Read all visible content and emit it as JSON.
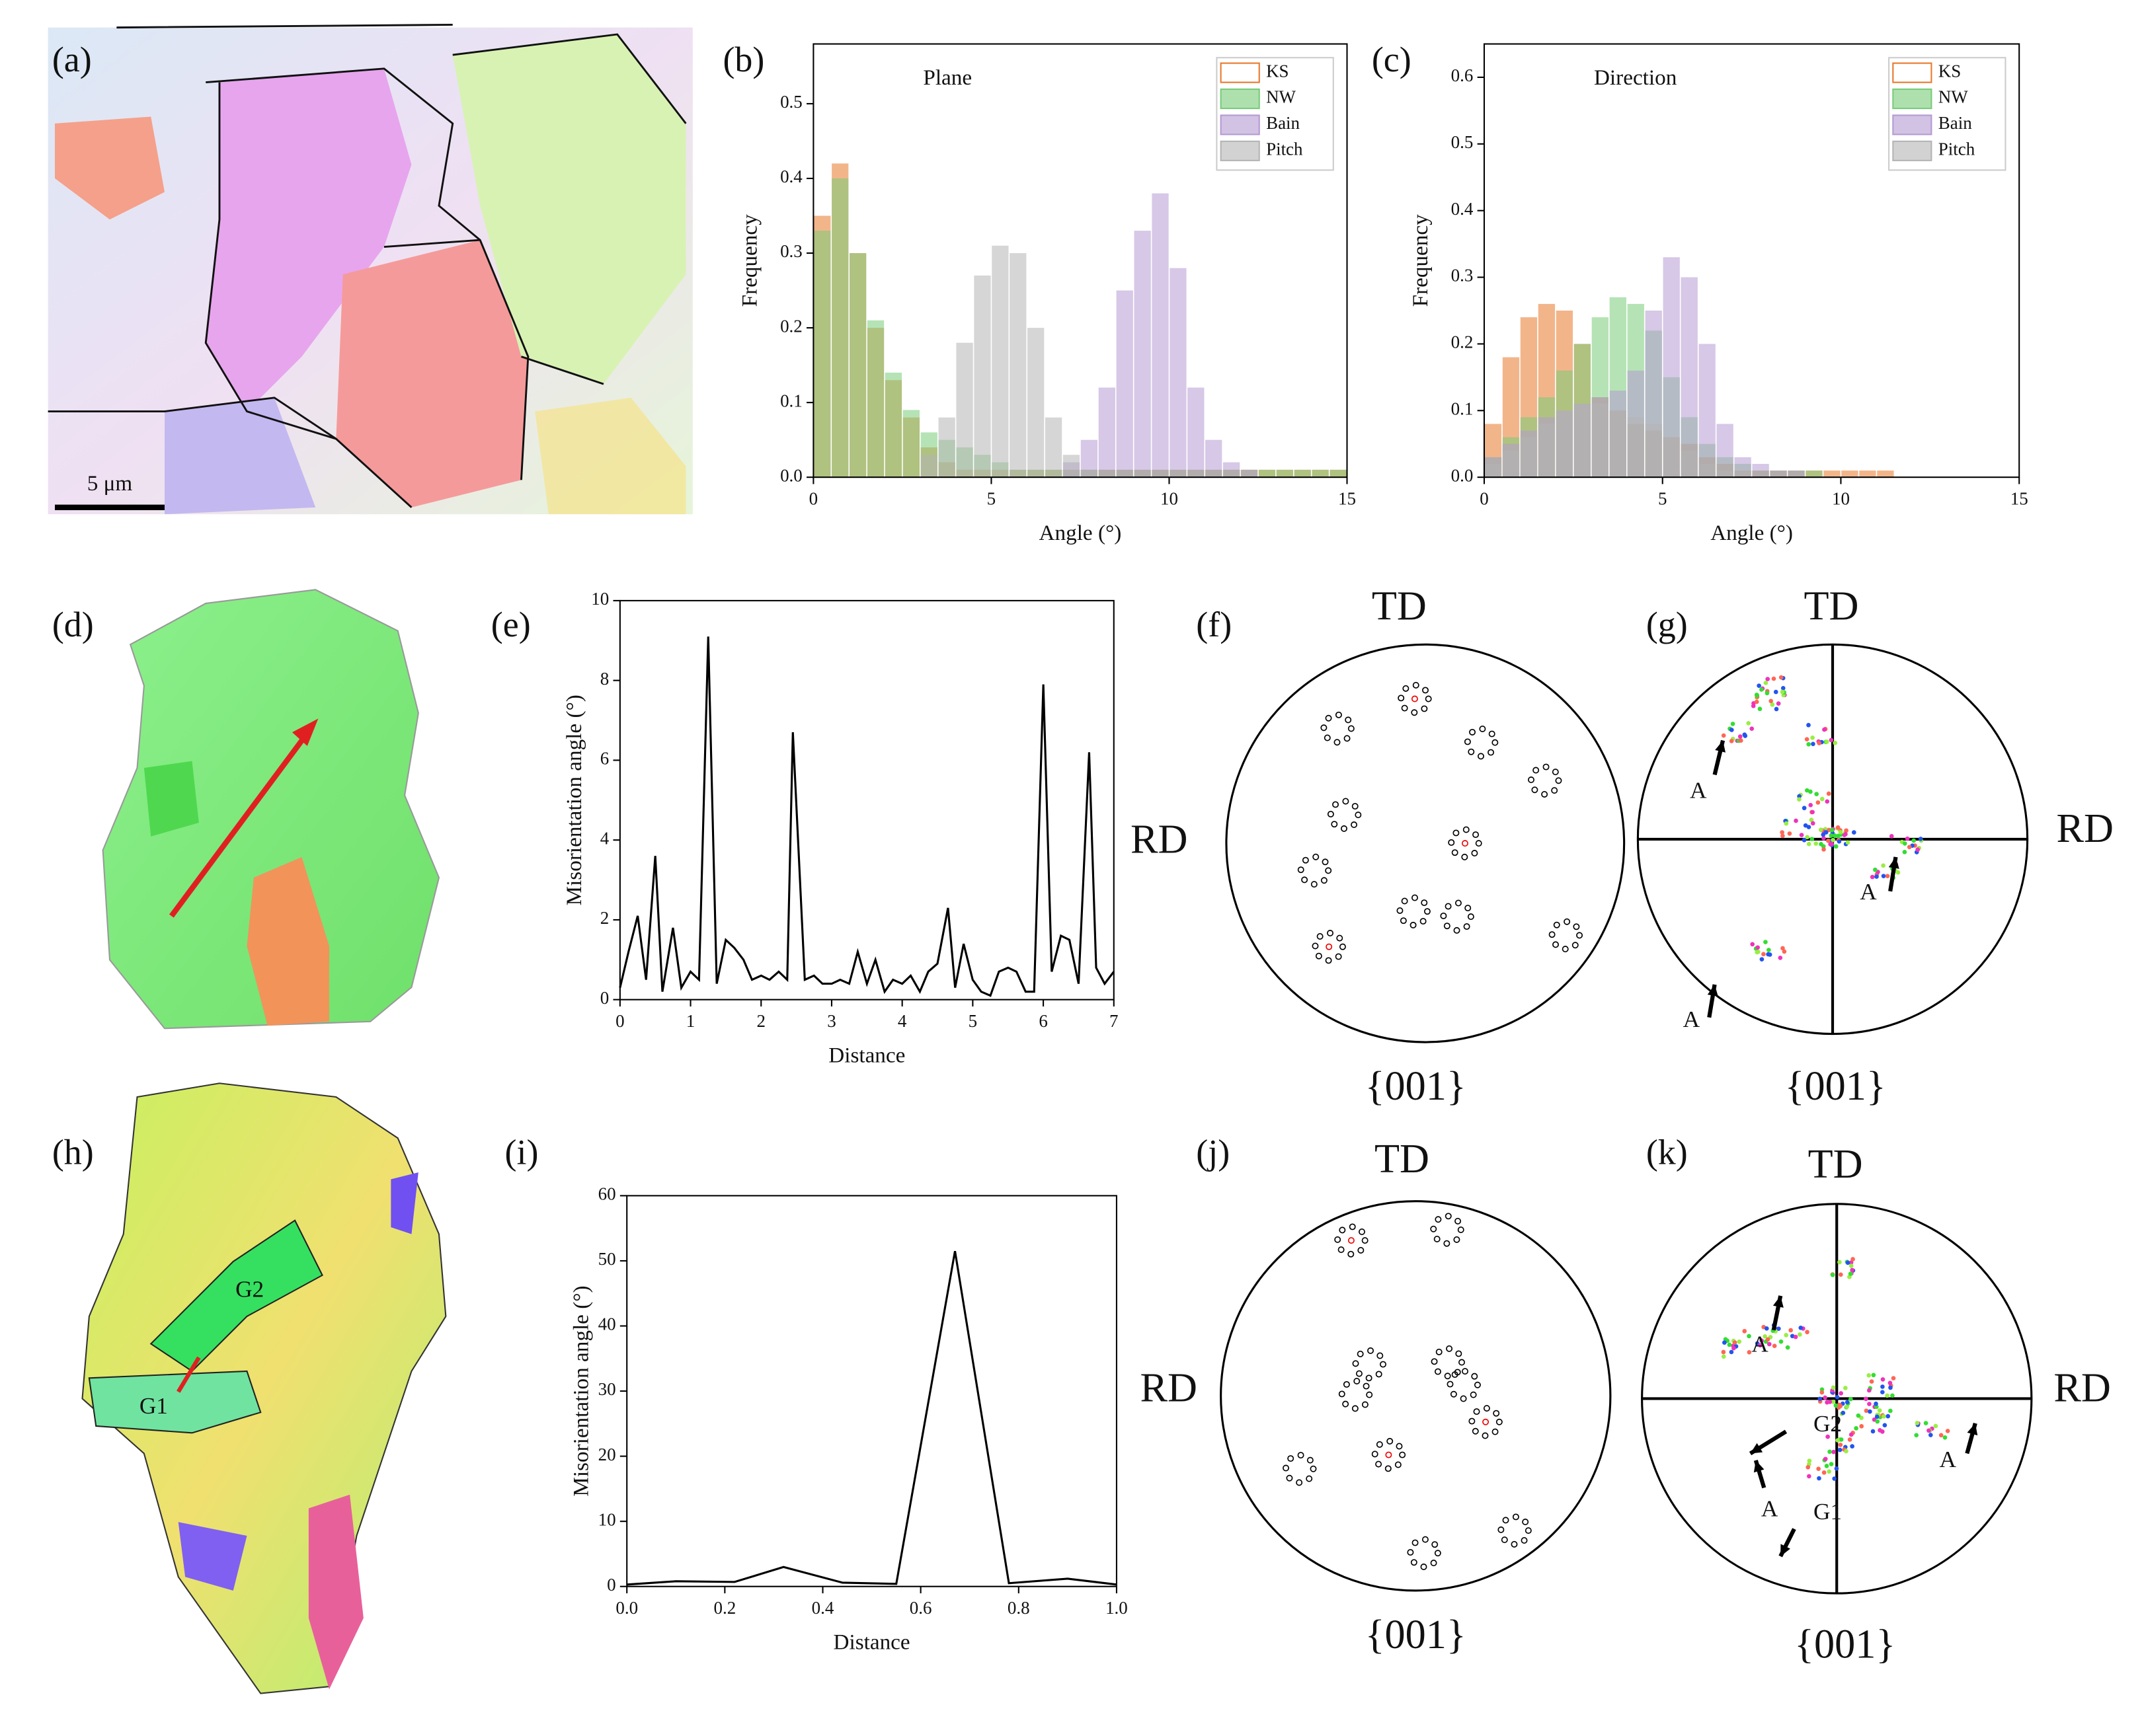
{
  "chart_data": [
    {
      "type": "histogram",
      "title": "Plane",
      "xlabel": "Angle (°)",
      "ylabel": "Frequency",
      "bins": [
        0,
        0.5,
        1,
        1.5,
        2,
        2.5,
        3,
        3.5,
        4,
        4.5,
        5,
        5.5,
        6,
        6.5,
        7,
        7.5,
        8,
        8.5,
        9,
        9.5,
        10,
        10.5,
        11,
        11.5,
        12,
        12.5,
        13,
        13.5,
        14,
        14.5,
        15
      ],
      "series": [
        {
          "name": "KS",
          "color": "#e8782a",
          "values": [
            0.35,
            0.42,
            0.3,
            0.2,
            0.13,
            0.08,
            0.04,
            0.02,
            0.01,
            0.01,
            0.01,
            0.01,
            0.01,
            0.01,
            0.01,
            0.01,
            0.01,
            0.01,
            0.01,
            0.01,
            0.01,
            0.01,
            0.01,
            0.01,
            0.01,
            0.01,
            0.01,
            0.01,
            0.01,
            0.01
          ]
        },
        {
          "name": "NW",
          "color": "#78cc78",
          "values": [
            0.33,
            0.4,
            0.3,
            0.21,
            0.14,
            0.09,
            0.06,
            0.05,
            0.04,
            0.03,
            0.02,
            0.01,
            0.01,
            0.01,
            0.01,
            0.01,
            0.01,
            0.01,
            0.01,
            0.01,
            0.01,
            0.01,
            0.01,
            0.01,
            0.01,
            0.01,
            0.01,
            0.01,
            0.01,
            0.01
          ]
        },
        {
          "name": "Bain",
          "color": "#b49ad2",
          "values": [
            0,
            0,
            0,
            0,
            0,
            0,
            0,
            0,
            0,
            0,
            0,
            0,
            0,
            0,
            0.02,
            0.05,
            0.12,
            0.25,
            0.33,
            0.38,
            0.28,
            0.12,
            0.05,
            0.02,
            0.01,
            0,
            0,
            0,
            0,
            0
          ]
        },
        {
          "name": "Pitch",
          "color": "#b4b4b4",
          "values": [
            0,
            0,
            0,
            0,
            0,
            0,
            0.03,
            0.08,
            0.18,
            0.27,
            0.31,
            0.3,
            0.2,
            0.08,
            0.03,
            0.01,
            0,
            0,
            0,
            0,
            0,
            0,
            0,
            0,
            0,
            0,
            0,
            0,
            0,
            0
          ]
        }
      ],
      "xlim": [
        0,
        15
      ],
      "xticks": [
        0,
        5,
        10,
        15
      ],
      "ylim": [
        0,
        0.58
      ],
      "yticks": [
        {
          "value": 0,
          "label": "0.0"
        },
        0.1,
        0.2,
        0.3,
        0.4,
        0.5
      ],
      "legend": "upper right"
    },
    {
      "type": "histogram",
      "title": "Direction",
      "xlabel": "Angle (°)",
      "ylabel": "Frequency",
      "bins": [
        0,
        0.5,
        1,
        1.5,
        2,
        2.5,
        3,
        3.5,
        4,
        4.5,
        5,
        5.5,
        6,
        6.5,
        7,
        7.5,
        8,
        8.5,
        9,
        9.5,
        10,
        10.5,
        11,
        11.5,
        12,
        12.5,
        13,
        13.5,
        14,
        14.5,
        15
      ],
      "series": [
        {
          "name": "KS",
          "color": "#e8782a",
          "values": [
            0.08,
            0.18,
            0.24,
            0.26,
            0.25,
            0.2,
            0.12,
            0.1,
            0.08,
            0.07,
            0.06,
            0.05,
            0.03,
            0.02,
            0.01,
            0.01,
            0.01,
            0.01,
            0.01,
            0.01,
            0.01,
            0.01,
            0.01,
            0,
            0,
            0,
            0,
            0,
            0,
            0
          ]
        },
        {
          "name": "NW",
          "color": "#78cc78",
          "values": [
            0.03,
            0.06,
            0.09,
            0.12,
            0.16,
            0.2,
            0.24,
            0.27,
            0.26,
            0.22,
            0.15,
            0.09,
            0.05,
            0.03,
            0.02,
            0.01,
            0.01,
            0.01,
            0.01,
            0,
            0,
            0,
            0,
            0,
            0,
            0,
            0,
            0,
            0,
            0
          ]
        },
        {
          "name": "Bain",
          "color": "#b49ad2",
          "values": [
            0.03,
            0.05,
            0.07,
            0.09,
            0.1,
            0.11,
            0.12,
            0.13,
            0.16,
            0.25,
            0.33,
            0.3,
            0.2,
            0.08,
            0.03,
            0.02,
            0.01,
            0.01,
            0,
            0,
            0,
            0,
            0,
            0,
            0,
            0,
            0,
            0,
            0,
            0
          ]
        },
        {
          "name": "Pitch",
          "color": "#b4b4b4",
          "values": [
            0.02,
            0.04,
            0.06,
            0.08,
            0.1,
            0.11,
            0.11,
            0.1,
            0.09,
            0.08,
            0.06,
            0.04,
            0.02,
            0.01,
            0.01,
            0,
            0,
            0,
            0,
            0,
            0,
            0,
            0,
            0,
            0,
            0,
            0,
            0,
            0,
            0
          ]
        }
      ],
      "xlim": [
        0,
        15
      ],
      "xticks": [
        0,
        5,
        10,
        15
      ],
      "ylim": [
        0,
        0.65
      ],
      "yticks": [
        {
          "value": 0,
          "label": "0.0"
        },
        0.1,
        0.2,
        0.3,
        0.4,
        0.5,
        0.6
      ],
      "legend": "upper right"
    },
    {
      "type": "line",
      "xlabel": "Distance",
      "ylabel": "Misorientation angle (°)",
      "color": "#000000",
      "x": [
        0,
        0.12,
        0.25,
        0.37,
        0.5,
        0.6,
        0.75,
        0.87,
        1,
        1.12,
        1.25,
        1.37,
        1.5,
        1.62,
        1.75,
        1.87,
        2,
        2.12,
        2.25,
        2.37,
        2.45,
        2.62,
        2.75,
        2.87,
        3,
        3.12,
        3.25,
        3.37,
        3.5,
        3.62,
        3.75,
        3.87,
        4,
        4.12,
        4.25,
        4.37,
        4.5,
        4.65,
        4.75,
        4.87,
        5,
        5.12,
        5.25,
        5.37,
        5.5,
        5.62,
        5.75,
        5.87,
        6,
        6.12,
        6.25,
        6.37,
        6.5,
        6.65,
        6.75,
        6.87,
        7
      ],
      "values": [
        0.3,
        1.2,
        2.1,
        0.5,
        3.6,
        0.2,
        1.8,
        0.3,
        0.7,
        0.5,
        9.1,
        0.4,
        1.5,
        1.3,
        1,
        0.5,
        0.6,
        0.5,
        0.7,
        0.5,
        6.7,
        0.5,
        0.6,
        0.4,
        0.4,
        0.5,
        0.4,
        1.2,
        0.4,
        1,
        0.2,
        0.5,
        0.4,
        0.6,
        0.2,
        0.7,
        0.9,
        2.3,
        0.3,
        1.4,
        0.5,
        0.2,
        0.1,
        0.7,
        0.8,
        0.7,
        0.2,
        0.2,
        7.9,
        0.7,
        1.6,
        1.5,
        0.4,
        6.2,
        0.8,
        0.4,
        0.7
      ],
      "xlim": [
        0,
        7
      ],
      "xticks": [
        0,
        1,
        2,
        3,
        4,
        5,
        6,
        7
      ],
      "ylim": [
        0,
        10
      ],
      "yticks": [
        0,
        2,
        4,
        6,
        8,
        10
      ]
    },
    {
      "type": "line",
      "xlabel": "Distance",
      "ylabel": "Misorientation angle (°)",
      "color": "#000000",
      "x": [
        0,
        0.1,
        0.22,
        0.32,
        0.44,
        0.55,
        0.67,
        0.78,
        0.9,
        1
      ],
      "values": [
        0.3,
        0.8,
        0.7,
        3,
        0.6,
        0.4,
        51.5,
        0.5,
        1.2,
        0.3
      ],
      "xlim": [
        0,
        1
      ],
      "xticks": [
        {
          "value": 0,
          "label": "0.0"
        },
        0.2,
        0.4,
        0.6,
        0.8,
        {
          "value": 1,
          "label": "1.0"
        }
      ],
      "ylim": [
        0,
        60
      ],
      "yticks": [
        0,
        10,
        20,
        30,
        40,
        50,
        60
      ]
    }
  ],
  "labels": {
    "panels": [
      "(a)",
      "(b)",
      "(c)",
      "(d)",
      "(e)",
      "(f)",
      "(g)",
      "(h)",
      "(i)",
      "(j)",
      "(k)"
    ],
    "scale_bar": "5 μm",
    "pole_figures": [
      {
        "td": "TD",
        "rd": "RD",
        "plane": "{001}"
      },
      {
        "td": "TD",
        "rd": "RD",
        "plane": "{001}"
      },
      {
        "td": "TD",
        "rd": "RD",
        "plane": "{001}"
      },
      {
        "td": "TD",
        "rd": "RD",
        "plane": "{001}"
      }
    ],
    "g_arrows": [
      "A",
      "A",
      "A"
    ],
    "k_arrows": [
      "A",
      "A",
      "A",
      "G2",
      "G1"
    ],
    "h_grains": [
      "G1",
      "G2"
    ]
  }
}
